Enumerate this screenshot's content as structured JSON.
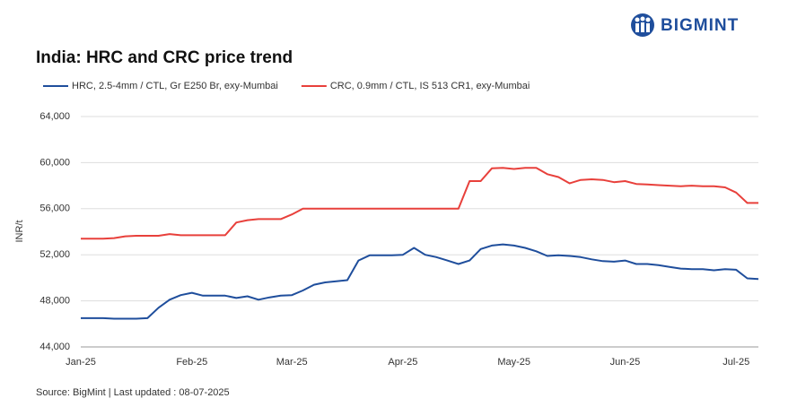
{
  "brand": "BIGMINT",
  "chart_data": {
    "type": "line",
    "title": "India: HRC and CRC price trend",
    "y_label": "INR/t",
    "source": "Source: BigMint | Last updated : 08-07-2025",
    "categories": [
      "Jan-25",
      null,
      null,
      null,
      null,
      null,
      null,
      null,
      null,
      null,
      "Feb-25",
      null,
      null,
      null,
      null,
      null,
      null,
      null,
      null,
      "Mar-25",
      null,
      null,
      null,
      null,
      null,
      null,
      null,
      null,
      null,
      "Apr-25",
      null,
      null,
      null,
      null,
      null,
      null,
      null,
      null,
      null,
      "May-25",
      null,
      null,
      null,
      null,
      null,
      null,
      null,
      null,
      null,
      "Jun-25",
      null,
      null,
      null,
      null,
      null,
      null,
      null,
      null,
      null,
      "Jul-25",
      null,
      null
    ],
    "series": [
      {
        "name": "HRC, 2.5-4mm / CTL, Gr E250 Br, exy-Mumbai",
        "color": "#1f4e9c",
        "values": [
          46500,
          46500,
          46500,
          46450,
          46450,
          46450,
          46500,
          47400,
          48100,
          48500,
          48700,
          48450,
          48450,
          48450,
          48250,
          48400,
          48100,
          48300,
          48450,
          48500,
          48900,
          49400,
          49600,
          49700,
          49800,
          51500,
          51950,
          51950,
          51950,
          52000,
          52600,
          52000,
          51800,
          51500,
          51200,
          51500,
          52500,
          52800,
          52900,
          52800,
          52600,
          52300,
          51900,
          51950,
          51900,
          51800,
          51600,
          51450,
          51400,
          51500,
          51200,
          51200,
          51100,
          50950,
          50800,
          50750,
          50750,
          50650,
          50750,
          50700,
          49950,
          49900
        ]
      },
      {
        "name": "CRC, 0.9mm / CTL, IS 513 CR1, exy-Mumbai",
        "color": "#e8403b",
        "values": [
          53400,
          53400,
          53400,
          53450,
          53600,
          53650,
          53650,
          53650,
          53800,
          53700,
          53700,
          53700,
          53700,
          53700,
          54800,
          55000,
          55100,
          55100,
          55100,
          55500,
          56000,
          56000,
          56000,
          56000,
          56000,
          56000,
          56000,
          56000,
          56000,
          56000,
          56000,
          56000,
          56000,
          56000,
          56000,
          58400,
          58400,
          59500,
          59550,
          59450,
          59550,
          59550,
          59000,
          58750,
          58200,
          58500,
          58550,
          58500,
          58300,
          58400,
          58150,
          58100,
          58050,
          58000,
          57950,
          58000,
          57950,
          57950,
          57850,
          57400,
          56500,
          56500
        ]
      }
    ],
    "ylim": [
      44000,
      64000
    ],
    "yticks": [
      {
        "value": 44000,
        "label": "44,000"
      },
      {
        "value": 48000,
        "label": "48,000"
      },
      {
        "value": 52000,
        "label": "52,000"
      },
      {
        "value": 56000,
        "label": "56,000"
      },
      {
        "value": 60000,
        "label": "60,000"
      },
      {
        "value": 64000,
        "label": "64,000"
      }
    ],
    "grid": true
  }
}
